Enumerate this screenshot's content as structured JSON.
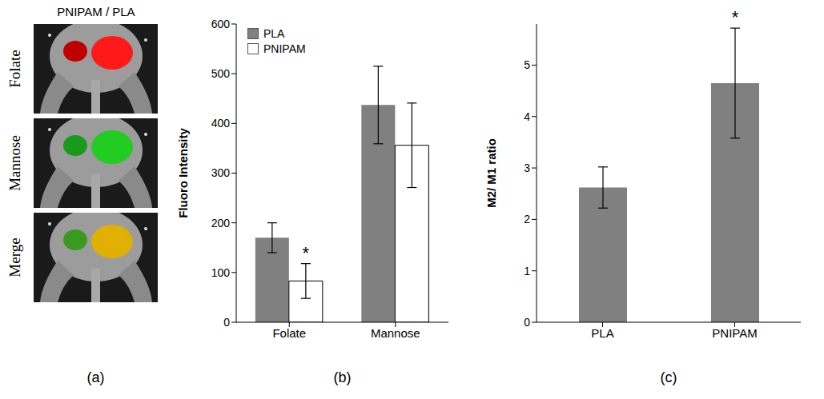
{
  "panel_a": {
    "title": "PNIPAM / PLA",
    "letter": "(a)",
    "rows": [
      {
        "label": "Folate",
        "colors": [
          "#c00000",
          "#ff1a1a"
        ]
      },
      {
        "label": "Mannose",
        "colors": [
          "#1a9a1a",
          "#22cc22"
        ]
      },
      {
        "label": "Merge",
        "colors": [
          "#3a9a20",
          "#e0b000"
        ]
      }
    ]
  },
  "chart_data": [
    {
      "type": "bar",
      "panel": "(b)",
      "y_label": "Fluoro Intensity",
      "categories": [
        "Folate",
        "Mannose"
      ],
      "series": [
        {
          "name": "PLA",
          "color": "#808080",
          "values": [
            170,
            437
          ],
          "errors": [
            30,
            78
          ]
        },
        {
          "name": "PNIPAM",
          "color": "#ffffff",
          "values": [
            83,
            356
          ],
          "errors": [
            35,
            85
          ]
        }
      ],
      "ylim": [
        0,
        600
      ],
      "yticks": [
        0,
        100,
        200,
        300,
        400,
        500,
        600
      ],
      "legend": "top-left",
      "annotations": [
        {
          "text": "*",
          "category": "Folate",
          "series": "PNIPAM"
        }
      ]
    },
    {
      "type": "bar",
      "panel": "(c)",
      "y_label": "M2/ M1 ratio",
      "categories": [
        "PLA",
        "PNIPAM"
      ],
      "values": [
        2.62,
        4.65
      ],
      "errors": [
        0.4,
        1.07
      ],
      "color": "#808080",
      "ylim": [
        0,
        5.8
      ],
      "yticks": [
        0,
        1,
        2,
        3,
        4,
        5
      ],
      "annotations": [
        {
          "text": "*",
          "category": "PNIPAM"
        }
      ]
    }
  ]
}
